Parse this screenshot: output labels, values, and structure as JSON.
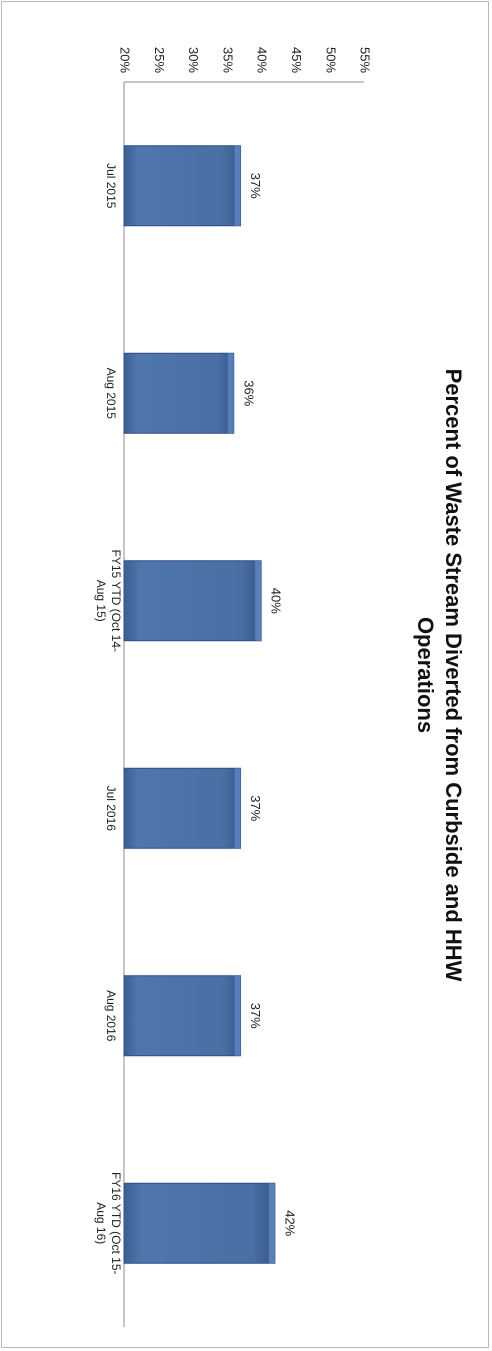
{
  "chart_data": {
    "type": "bar",
    "orientation": "vertical, rotated 90° clockwise",
    "title": "Percent of Waste Stream Diverted from Curbside and HHW Operations",
    "categories": [
      "Jul 2015",
      "Aug 2015",
      "FY15 YTD (Oct 14-Aug 15)",
      "Jul 2016",
      "Aug 2016",
      "FY16 YTD (Oct 15-Aug 16)"
    ],
    "values": [
      37,
      36,
      40,
      37,
      37,
      42
    ],
    "data_labels": [
      "37%",
      "36%",
      "40%",
      "37%",
      "37%",
      "42%"
    ],
    "ylim": [
      20,
      55
    ],
    "ytick_labels": [
      "20%",
      "25%",
      "30%",
      "35%",
      "40%",
      "45%",
      "50%",
      "55%"
    ],
    "grid": false,
    "legend": "none",
    "bar_color": "#4a6fa5"
  }
}
